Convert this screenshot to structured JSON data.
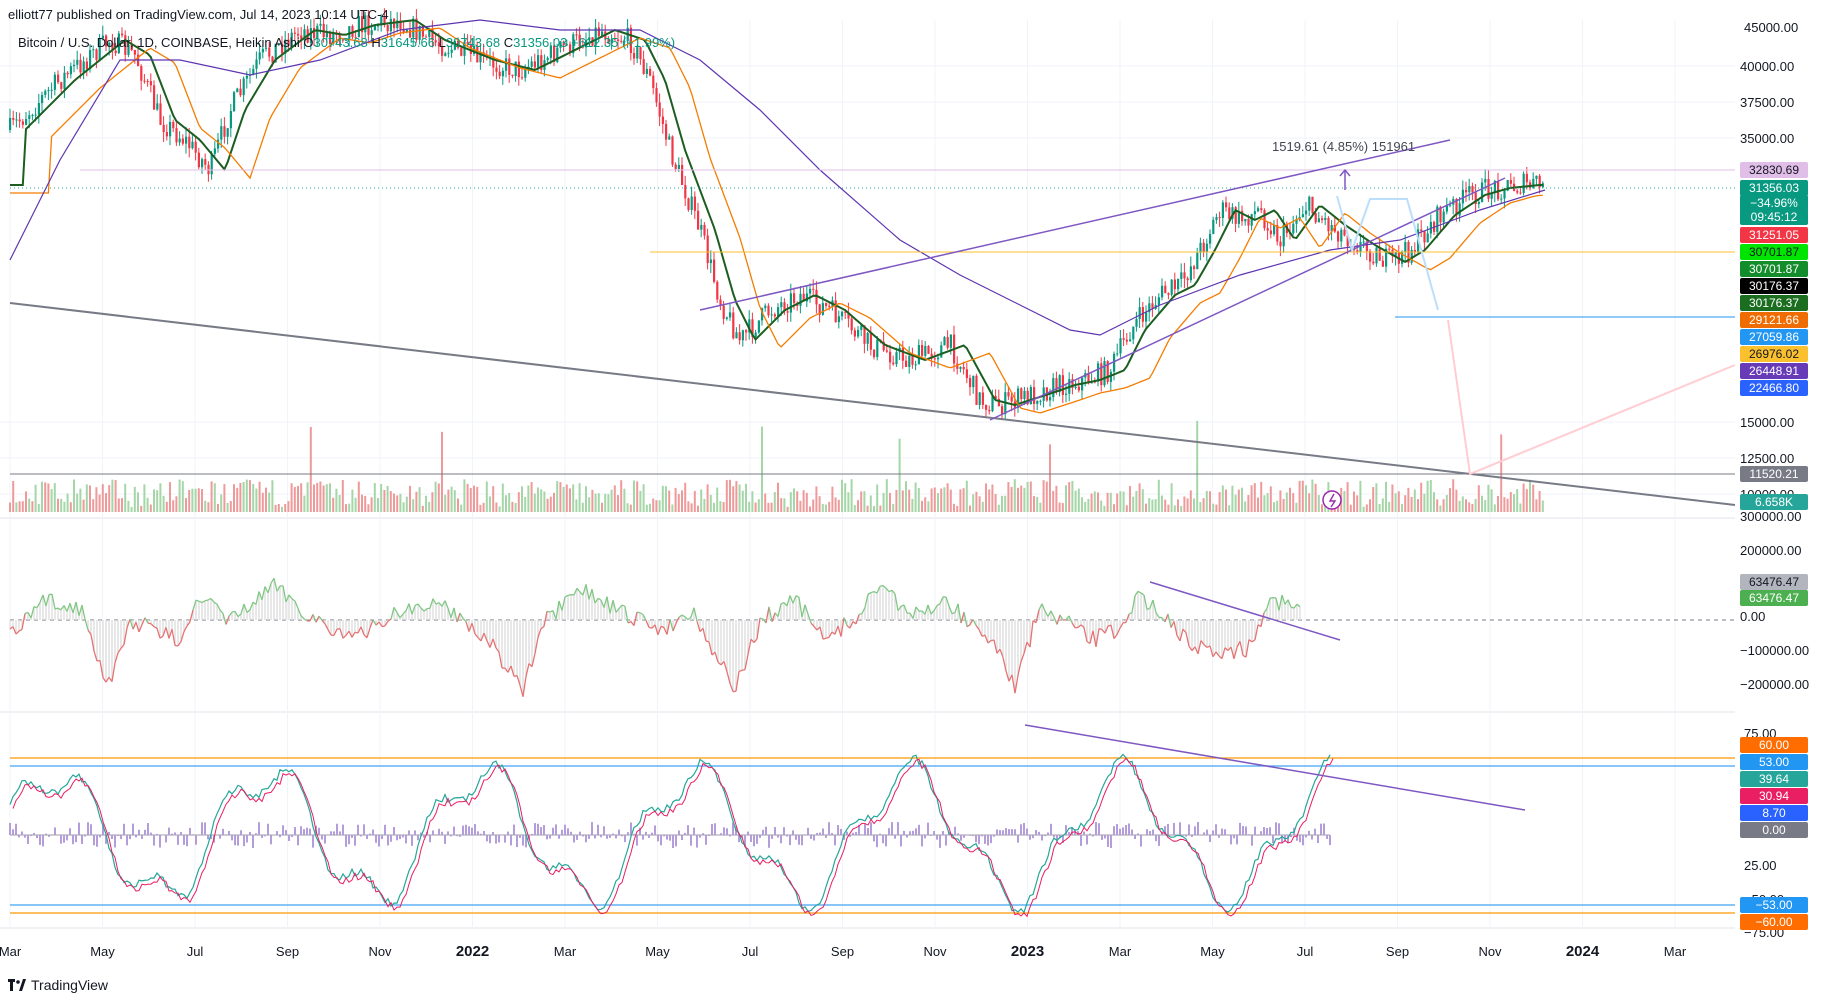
{
  "header": {
    "author": "elliott77",
    "published_text": "published on TradingView.com, Jul 14, 2023 10:14 UTC-4"
  },
  "legend": {
    "symbol": "Bitcoin / U.S. Dollar, 1D, COINBASE, Heikin Ashi",
    "o_label": "O",
    "o_value": "30743.68",
    "h_label": "H",
    "h_value": "31645.66",
    "l_label": "L",
    "l_value": "30743.68",
    "c_label": "C",
    "c_value": "31356.03",
    "change": "+612.35 (+1.99%)"
  },
  "brand": {
    "name": "TradingView"
  },
  "colors": {
    "up": "#089981",
    "down": "#f23645",
    "grid": "#f0f3fa",
    "channel": "#7e57c2",
    "long_trend": "#787b86",
    "ema_orange": "#f57c00"
  },
  "chart_data": [
    {
      "type": "candlestick",
      "pane": "price",
      "title": "Bitcoin / U.S. Dollar, 1D, COINBASE, Heikin Ashi",
      "x_axis": [
        "Mar",
        "May",
        "Jul",
        "Sep",
        "Nov",
        "2022",
        "Mar",
        "May",
        "Jul",
        "Sep",
        "Nov",
        "2023",
        "Mar",
        "May",
        "Jul",
        "Sep",
        "Nov",
        "2024",
        "Mar"
      ],
      "y_ticks": [
        "40000.00",
        "37500.00",
        "35000.00",
        "15000.00",
        "12500.00",
        "10000.00"
      ],
      "y_tick_cut": "45000.00",
      "price_labels": [
        {
          "value": "32830.69",
          "color": "#e1bee7",
          "text_color": "#131722"
        },
        {
          "value": "31356.03",
          "color": "#089981"
        },
        {
          "value": "−34.96%",
          "color": "#089981"
        },
        {
          "value": "09:45:12",
          "color": "#089981"
        },
        {
          "value": "31251.05",
          "color": "#f23645"
        },
        {
          "value": "30701.87",
          "color": "#00e500",
          "text_color": "#131722"
        },
        {
          "value": "30701.87",
          "color": "#138d2b"
        },
        {
          "value": "30176.37",
          "color": "#000000"
        },
        {
          "value": "30176.37",
          "color": "#1b6e1f"
        },
        {
          "value": "29121.66",
          "color": "#ef6c00"
        },
        {
          "value": "27059.86",
          "color": "#2196f3"
        },
        {
          "value": "26976.02",
          "color": "#fbc02d",
          "text_color": "#131722"
        },
        {
          "value": "26448.91",
          "color": "#673ab7"
        },
        {
          "value": "22466.80",
          "color": "#2962ff"
        },
        {
          "value": "11520.21",
          "color": "#787b86"
        },
        {
          "value": "6.658K",
          "color": "#26a69a"
        }
      ],
      "measure_annotation": "1519.61 (4.85%) 151961"
    },
    {
      "type": "line",
      "pane": "oscillator",
      "y_ticks": [
        "300000.00",
        "200000.00",
        "0.00",
        "−100000.00",
        "−200000.00"
      ],
      "labels": [
        {
          "value": "63476.47",
          "color": "#b2b5be",
          "text_color": "#131722"
        },
        {
          "value": "63476.47",
          "color": "#4caf50"
        }
      ]
    },
    {
      "type": "line",
      "pane": "stochastic",
      "y_ticks": [
        "75.00",
        "25.00",
        "−75.00"
      ],
      "y_tick_cut": [
        "−50.00"
      ],
      "levels": [
        60,
        53,
        0,
        -53,
        -60
      ],
      "labels": [
        {
          "value": "60.00",
          "color": "#ff6d00"
        },
        {
          "value": "53.00",
          "color": "#2196f3"
        },
        {
          "value": "39.64",
          "color": "#26a69a"
        },
        {
          "value": "30.94",
          "color": "#e91e63"
        },
        {
          "value": "8.70",
          "color": "#2962ff"
        },
        {
          "value": "0.00",
          "color": "#787b86"
        },
        {
          "value": "−53.00",
          "color": "#2196f3"
        },
        {
          "value": "−60.00",
          "color": "#ff6d00"
        }
      ]
    }
  ]
}
